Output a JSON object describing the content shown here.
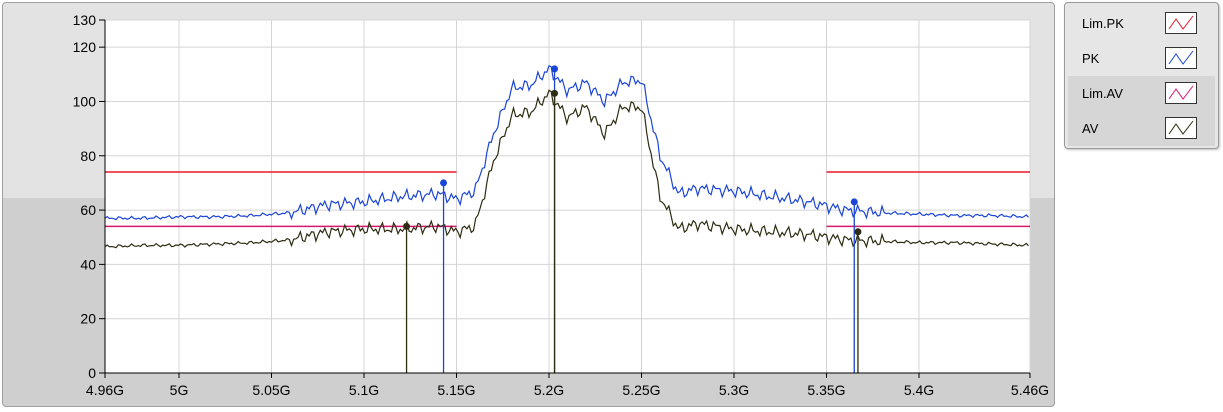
{
  "chart_data": {
    "type": "line",
    "xlim": [
      4.96,
      5.46
    ],
    "ylim": [
      0,
      130
    ],
    "x_ticks": [
      {
        "value": 4.96,
        "label": "4.96G"
      },
      {
        "value": 5.0,
        "label": "5G"
      },
      {
        "value": 5.05,
        "label": "5.05G"
      },
      {
        "value": 5.1,
        "label": "5.1G"
      },
      {
        "value": 5.15,
        "label": "5.15G"
      },
      {
        "value": 5.2,
        "label": "5.2G"
      },
      {
        "value": 5.25,
        "label": "5.25G"
      },
      {
        "value": 5.3,
        "label": "5.3G"
      },
      {
        "value": 5.35,
        "label": "5.35G"
      },
      {
        "value": 5.4,
        "label": "5.4G"
      },
      {
        "value": 5.46,
        "label": "5.46G"
      }
    ],
    "y_ticks": [
      0,
      20,
      40,
      60,
      80,
      100,
      120,
      130
    ],
    "grid": true,
    "legend_position": "right",
    "series": [
      {
        "name": "Lim.PK",
        "color": "#e8192c",
        "segments": [
          [
            [
              4.96,
              74
            ],
            [
              5.15,
              74
            ]
          ],
          [
            [
              5.35,
              74
            ],
            [
              5.46,
              74
            ]
          ]
        ]
      },
      {
        "name": "PK",
        "color": "#1b45d6",
        "x": [
          4.96,
          4.98,
          5.0,
          5.02,
          5.04,
          5.06,
          5.08,
          5.1,
          5.12,
          5.14,
          5.15,
          5.16,
          5.17,
          5.18,
          5.19,
          5.2,
          5.21,
          5.22,
          5.23,
          5.24,
          5.25,
          5.26,
          5.27,
          5.28,
          5.3,
          5.32,
          5.34,
          5.36,
          5.38,
          5.4,
          5.42,
          5.44,
          5.46
        ],
        "y": [
          57,
          57,
          57.5,
          57.5,
          58,
          59,
          62,
          63,
          65,
          66,
          64,
          67,
          88,
          105,
          106,
          112,
          104,
          107,
          100,
          107,
          108,
          80,
          66,
          68,
          67,
          65,
          63,
          60,
          59,
          58.5,
          58,
          58,
          57.5
        ]
      },
      {
        "name": "Lim.AV",
        "color": "#d6176e",
        "segments": [
          [
            [
              4.96,
              54
            ],
            [
              5.15,
              54
            ]
          ],
          [
            [
              5.35,
              54
            ],
            [
              5.46,
              54
            ]
          ]
        ]
      },
      {
        "name": "AV",
        "color": "#2d2d12",
        "x": [
          4.96,
          4.98,
          5.0,
          5.02,
          5.04,
          5.06,
          5.08,
          5.1,
          5.12,
          5.14,
          5.15,
          5.16,
          5.17,
          5.18,
          5.19,
          5.2,
          5.21,
          5.22,
          5.23,
          5.24,
          5.25,
          5.26,
          5.27,
          5.28,
          5.3,
          5.32,
          5.34,
          5.36,
          5.38,
          5.4,
          5.42,
          5.44,
          5.46
        ],
        "y": [
          46.5,
          47,
          47,
          47.5,
          48,
          49,
          52,
          53,
          53,
          54,
          52,
          54,
          78,
          95,
          96,
          103,
          94,
          98,
          88,
          98,
          98,
          65,
          53,
          55,
          53,
          52,
          51,
          49,
          48.5,
          48,
          48,
          47.5,
          47
        ]
      }
    ],
    "markers": [
      {
        "series": "PK",
        "x": 5.143,
        "y": 70,
        "color": "#1b45d6"
      },
      {
        "series": "PK",
        "x": 5.203,
        "y": 112,
        "color": "#1b45d6"
      },
      {
        "series": "PK",
        "x": 5.365,
        "y": 63,
        "color": "#1b45d6"
      },
      {
        "series": "AV",
        "x": 5.123,
        "y": 54,
        "color": "#2d2d12"
      },
      {
        "series": "AV",
        "x": 5.203,
        "y": 103,
        "color": "#2d2d12"
      },
      {
        "series": "AV",
        "x": 5.367,
        "y": 52,
        "color": "#2d2d12"
      }
    ]
  },
  "legend": {
    "items": [
      {
        "label": "Lim.PK",
        "color": "#e8192c"
      },
      {
        "label": "PK",
        "color": "#1b45d6"
      },
      {
        "label": "Lim.AV",
        "color": "#d6176e"
      },
      {
        "label": "AV",
        "color": "#2d2d12"
      }
    ]
  }
}
